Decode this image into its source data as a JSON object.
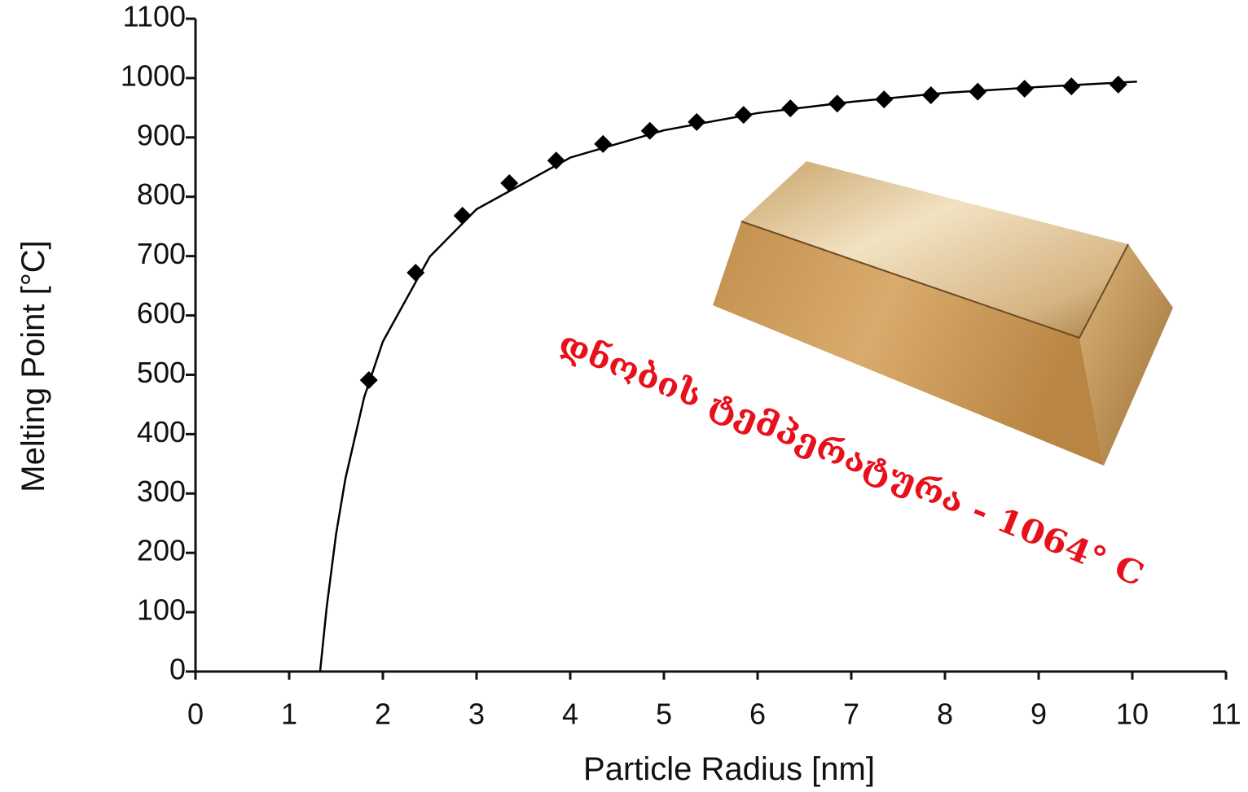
{
  "chart_data": {
    "type": "scatter",
    "xlabel": "Particle Radius [nm]",
    "ylabel": "Melting Point [°C]",
    "annotation": "დნობის  ტემპერატურა - 1064° C",
    "xlim": [
      0,
      11
    ],
    "xticks": [
      0,
      1,
      2,
      3,
      4,
      5,
      6,
      7,
      8,
      9,
      10,
      11
    ],
    "ylim": [
      0,
      1100
    ],
    "yticks": [
      0,
      100,
      200,
      300,
      400,
      500,
      600,
      700,
      800,
      900,
      1000,
      1100
    ],
    "series": [
      {
        "style": "markers",
        "color": "#000000",
        "x": [
          1.85,
          2.35,
          2.85,
          3.35,
          3.85,
          4.35,
          4.85,
          5.35,
          5.85,
          6.35,
          6.85,
          7.35,
          7.85,
          8.35,
          8.85,
          9.35,
          9.85
        ],
        "values": [
          491,
          672,
          768,
          823,
          861,
          889,
          911,
          926,
          938,
          949,
          957,
          964,
          971,
          977,
          982,
          986,
          989
        ]
      },
      {
        "style": "line",
        "color": "#000000",
        "x": [
          1.33,
          1.4,
          1.5,
          1.6,
          1.8,
          2,
          2.5,
          3,
          4,
          5,
          6,
          7,
          8,
          9,
          10.05
        ],
        "values": [
          0,
          108,
          231,
          325,
          462,
          556,
          699,
          779,
          866,
          912,
          941,
          960,
          975,
          985,
          994
        ]
      }
    ]
  }
}
